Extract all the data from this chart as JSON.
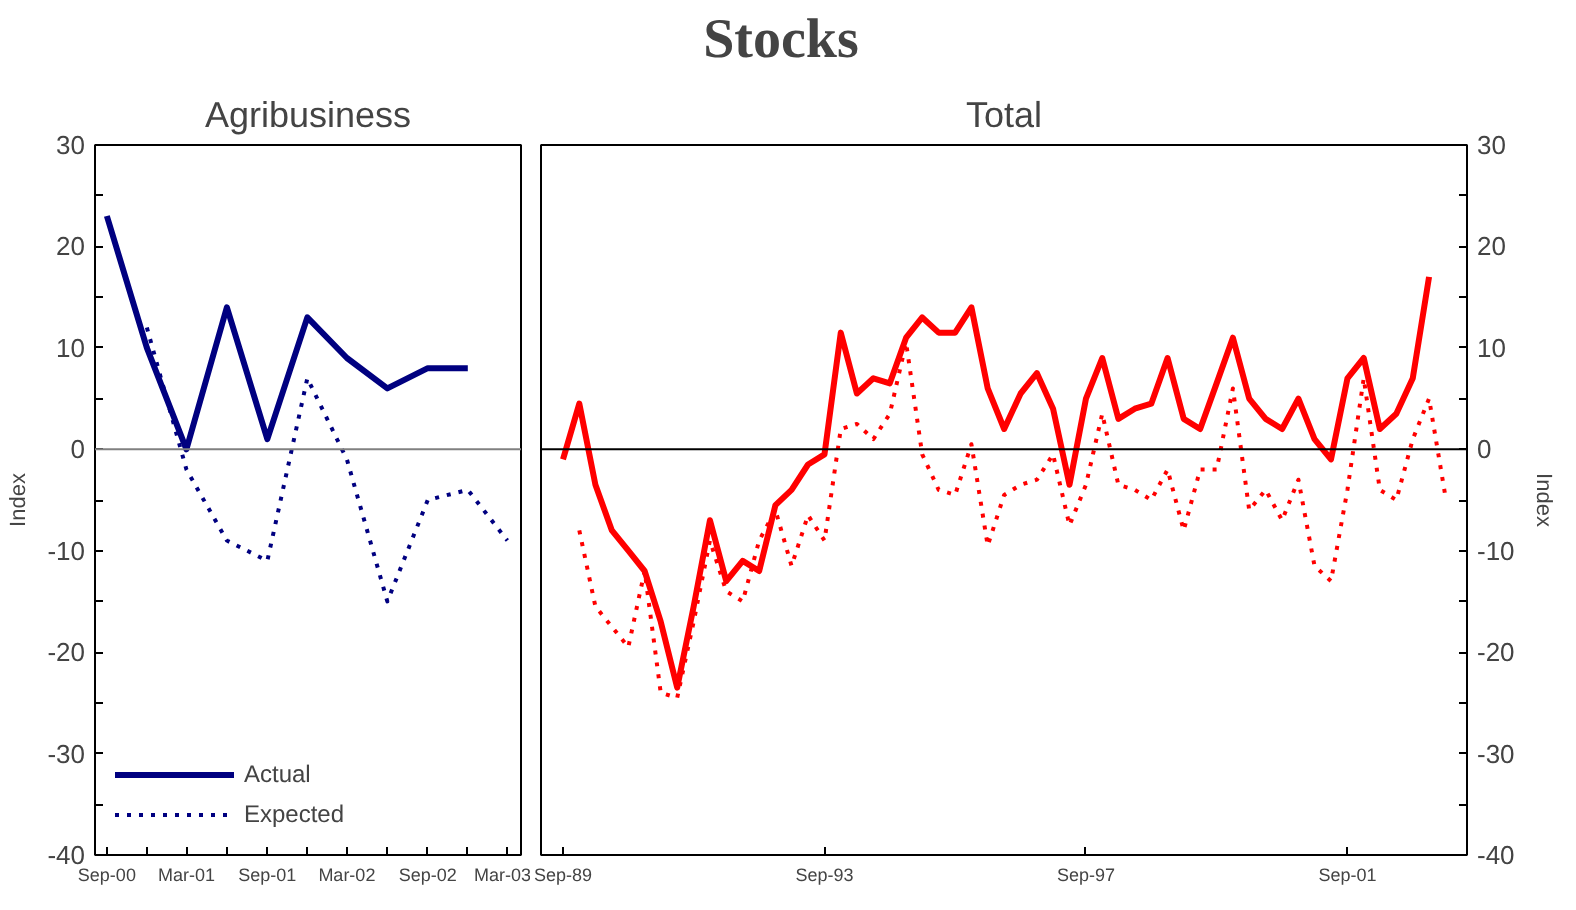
{
  "chart_data": [
    {
      "type": "other",
      "title": "Stocks"
    },
    {
      "type": "line",
      "title": "Agribusiness",
      "ylabel": "Index",
      "x": [
        "2000-09",
        "2000-12",
        "2001-03",
        "2001-06",
        "2001-09",
        "2001-12",
        "2002-03",
        "2002-06",
        "2002-09",
        "2002-12",
        "2003-03"
      ],
      "series": [
        {
          "name": "Actual",
          "color": "#000080",
          "line_style": "solid",
          "values": [
            23,
            10,
            0,
            14,
            1,
            13,
            9,
            6,
            8,
            8,
            null
          ]
        },
        {
          "name": "Expected",
          "color": "#000080",
          "line_style": "dotted",
          "values": [
            null,
            12,
            -2,
            -9,
            -11,
            7,
            -1,
            -15,
            -5,
            -4,
            -9
          ]
        }
      ],
      "xlim": [
        "2000-08-05",
        "2003-04-01"
      ],
      "xticks": [
        {
          "value": "2000-09",
          "label": "Sep-00"
        },
        {
          "value": "2000-12",
          "label": null
        },
        {
          "value": "2001-03",
          "label": "Mar-01"
        },
        {
          "value": "2001-06",
          "label": null
        },
        {
          "value": "2001-09",
          "label": "Sep-01"
        },
        {
          "value": "2001-12",
          "label": null
        },
        {
          "value": "2002-03",
          "label": "Mar-02"
        },
        {
          "value": "2002-06",
          "label": null
        },
        {
          "value": "2002-09",
          "label": "Sep-02"
        },
        {
          "value": "2002-12",
          "label": null
        },
        {
          "value": "2003-03",
          "label": "Mar-03"
        }
      ],
      "ylim": [
        -40,
        30
      ],
      "yticks": [
        -40,
        {
          "value": -35,
          "label": null
        },
        -30,
        {
          "value": -25,
          "label": null
        },
        -20,
        {
          "value": -15,
          "label": null
        },
        -10,
        {
          "value": -5,
          "label": null
        },
        0,
        {
          "value": 5,
          "label": null
        },
        10,
        {
          "value": 15,
          "label": null
        },
        20,
        {
          "value": 25,
          "label": null
        },
        30
      ],
      "ref_lines": [
        {
          "axis": "y",
          "value": 0,
          "color": "#808080"
        }
      ],
      "grid": false,
      "legend": "bottom"
    },
    {
      "type": "line",
      "title": "Total",
      "ylabel": "Index",
      "x": [
        "1989-09",
        "1989-12",
        "1990-03",
        "1990-06",
        "1990-09",
        "1990-12",
        "1991-03",
        "1991-06",
        "1991-09",
        "1991-12",
        "1992-03",
        "1992-06",
        "1992-09",
        "1992-12",
        "1993-03",
        "1993-06",
        "1993-09",
        "1993-12",
        "1994-03",
        "1994-06",
        "1994-09",
        "1994-12",
        "1995-03",
        "1995-06",
        "1995-09",
        "1995-12",
        "1996-03",
        "1996-06",
        "1996-09",
        "1996-12",
        "1997-03",
        "1997-06",
        "1997-09",
        "1997-12",
        "1998-03",
        "1998-06",
        "1998-09",
        "1998-12",
        "1999-03",
        "1999-06",
        "1999-09",
        "1999-12",
        "2000-03",
        "2000-06",
        "2000-09",
        "2000-12",
        "2001-03",
        "2001-06",
        "2001-09",
        "2001-12",
        "2002-03",
        "2002-06",
        "2002-09",
        "2002-12",
        "2003-03"
      ],
      "series": [
        {
          "color": "#ff0000",
          "line_style": "solid",
          "values": [
            -1,
            4.5,
            -3.5,
            -8,
            -10,
            -12,
            -17,
            -23.5,
            -15.5,
            -7,
            -13,
            -11,
            -12,
            -5.5,
            -4,
            -1.5,
            -0.5,
            11.5,
            5.5,
            7,
            6.5,
            11,
            13,
            11.5,
            11.5,
            14,
            6,
            2,
            5.5,
            7.5,
            4,
            -3.5,
            5,
            9,
            3,
            4,
            4.5,
            9,
            3,
            2,
            6.5,
            11,
            5,
            3,
            2,
            5,
            1,
            -1,
            7,
            9,
            2,
            3.5,
            7,
            17,
            null
          ]
        },
        {
          "color": "#ff0000",
          "line_style": "dotted",
          "values": [
            null,
            -8,
            -15.5,
            -17.5,
            -19.5,
            -12,
            -24,
            -24.5,
            -17,
            -9,
            -14,
            -15,
            -9,
            -6,
            -11.5,
            -6.5,
            -9,
            2,
            2.5,
            1,
            3.5,
            10.5,
            -0.5,
            -4,
            -4.5,
            0.5,
            -9.5,
            -4.5,
            -3.5,
            -3,
            -0.5,
            -7.5,
            -3.5,
            3.5,
            -3.5,
            -4,
            -5,
            -2,
            -8,
            -2,
            -2,
            6,
            -6,
            -4,
            -7,
            -3,
            -11.5,
            -13,
            -4,
            7,
            -4,
            -5,
            1,
            5,
            -4.5
          ]
        }
      ],
      "xlim": [
        "1989-05-01",
        "2003-07-01"
      ],
      "xticks": [
        {
          "value": "1989-09",
          "label": "Sep-89"
        },
        {
          "value": "1993-09",
          "label": "Sep-93"
        },
        {
          "value": "1997-09",
          "label": "Sep-97"
        },
        {
          "value": "2001-09",
          "label": "Sep-01"
        }
      ],
      "ylim": [
        -40,
        30
      ],
      "yticks": [
        -40,
        {
          "value": -35,
          "label": null
        },
        -30,
        {
          "value": -25,
          "label": null
        },
        -20,
        {
          "value": -15,
          "label": null
        },
        -10,
        {
          "value": -5,
          "label": null
        },
        0,
        {
          "value": 5,
          "label": null
        },
        10,
        {
          "value": 15,
          "label": null
        },
        20,
        {
          "value": 25,
          "label": null
        },
        30
      ],
      "ref_lines": [
        {
          "axis": "y",
          "value": 0,
          "color": "#000000"
        }
      ],
      "grid": false
    }
  ]
}
